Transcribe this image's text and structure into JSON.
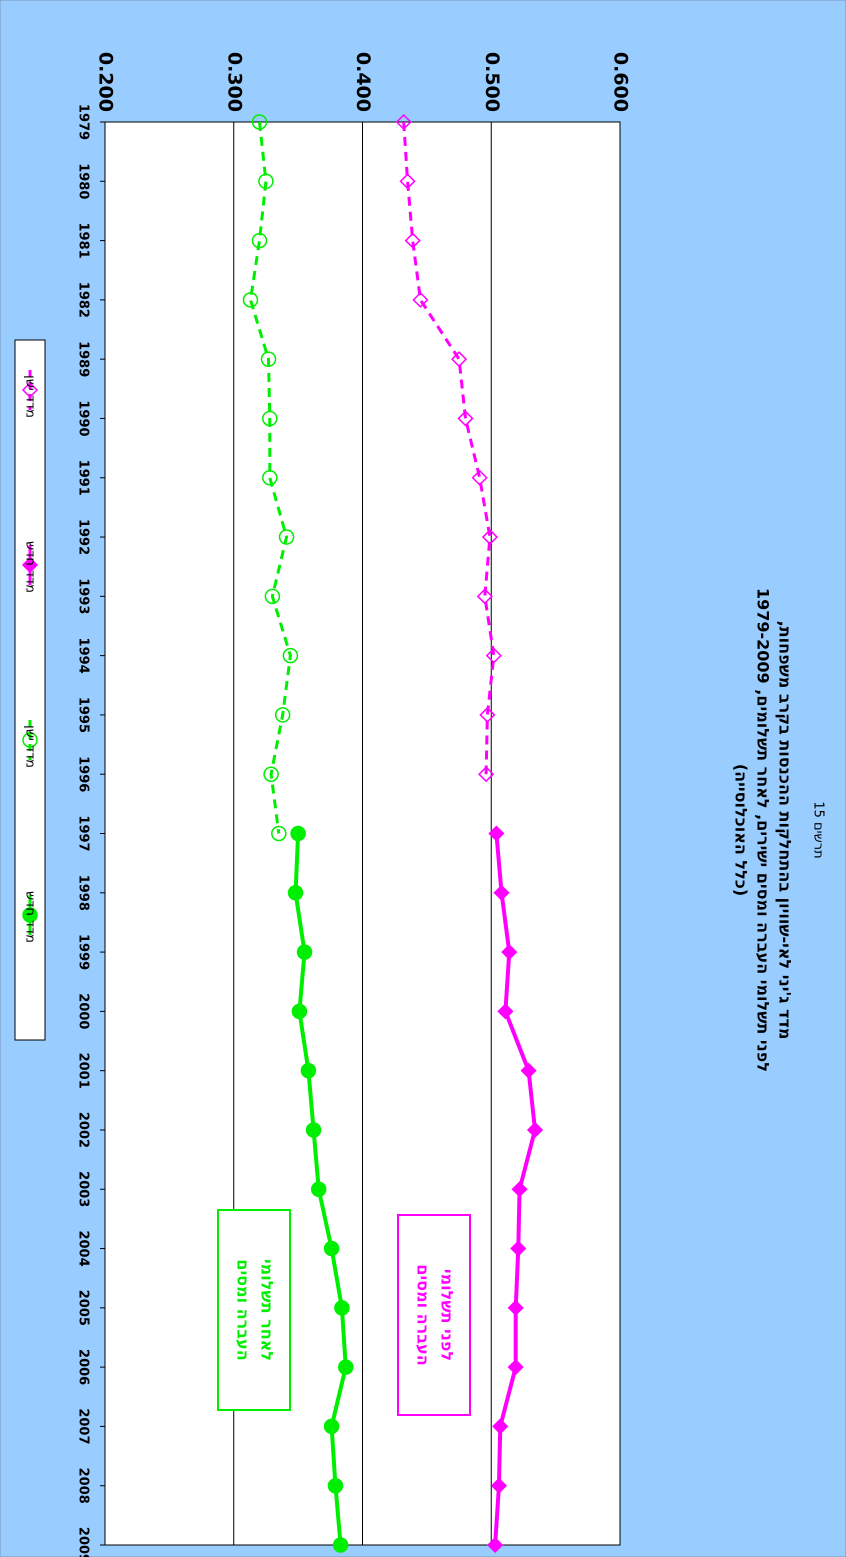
{
  "chart_data": {
    "type": "line",
    "subtitle": "תרשים 15",
    "title": [
      "מדד ג'יני לאי-שוויון בהתחלקות ההכנסות בקרב משפחות,",
      "לפני תשלומי העברה ומסים ישירים, לאחר תשלומים, 1979-2009",
      "(כלל האוכלוסייה)"
    ],
    "categories": [
      "1979",
      "1980",
      "1981",
      "1982",
      "1989",
      "1990",
      "1991",
      "1992",
      "1993",
      "1994",
      "1995",
      "1996",
      "1997",
      "1998",
      "1999",
      "2000",
      "2001",
      "2002",
      "2003",
      "2004",
      "2005",
      "2006",
      "2007",
      "2008",
      "2009"
    ],
    "ylim": [
      0.2,
      0.6
    ],
    "yticks": [
      {
        "value": 0.2,
        "label": "0.200"
      },
      {
        "value": 0.3,
        "label": "0.300"
      },
      {
        "value": 0.4,
        "label": "0.400"
      },
      {
        "value": 0.5,
        "label": "0.500"
      },
      {
        "value": 0.6,
        "label": "0.600"
      }
    ],
    "grid": true,
    "series": [
      {
        "name": "מדד ישן",
        "color": "#ff00ff",
        "dash": true,
        "marker": "diamond",
        "filled": false,
        "values": [
          0.432,
          0.435,
          0.439,
          0.445,
          0.475,
          0.48,
          0.491,
          0.499,
          0.495,
          0.502,
          0.497,
          0.496,
          null,
          null,
          null,
          null,
          null,
          null,
          null,
          null,
          null,
          null,
          null,
          null,
          null
        ]
      },
      {
        "name": "מדד חדש",
        "color": "#ff00ff",
        "dash": false,
        "marker": "diamond",
        "filled": true,
        "values": [
          null,
          null,
          null,
          null,
          null,
          null,
          null,
          null,
          null,
          null,
          null,
          null,
          0.504,
          0.508,
          0.514,
          0.511,
          0.529,
          0.534,
          0.522,
          0.521,
          0.519,
          0.519,
          0.507,
          0.506,
          0.503
        ]
      },
      {
        "name": "מדד ישן",
        "color": "#00ee00",
        "dash": true,
        "marker": "circle",
        "filled": false,
        "values": [
          0.32,
          0.325,
          0.32,
          0.313,
          0.327,
          0.328,
          0.328,
          0.341,
          0.33,
          0.344,
          0.338,
          0.329,
          0.335,
          null,
          null,
          null,
          null,
          null,
          null,
          null,
          null,
          null,
          null,
          null,
          null
        ]
      },
      {
        "name": "מדד חדש",
        "color": "#00ee00",
        "dash": false,
        "marker": "circle",
        "filled": true,
        "values": [
          null,
          null,
          null,
          null,
          null,
          null,
          null,
          null,
          null,
          null,
          null,
          null,
          0.35,
          0.348,
          0.355,
          0.351,
          0.358,
          0.362,
          0.366,
          0.376,
          0.384,
          0.387,
          0.376,
          0.379,
          0.383
        ]
      }
    ],
    "annotations": [
      {
        "lines": [
          "לפני תשלומי",
          "העברה ומסים"
        ],
        "color": "#ff00ff"
      },
      {
        "lines": [
          "לאחר תשלומי",
          "העברה ומסים"
        ],
        "color": "#00ee00"
      }
    ]
  }
}
